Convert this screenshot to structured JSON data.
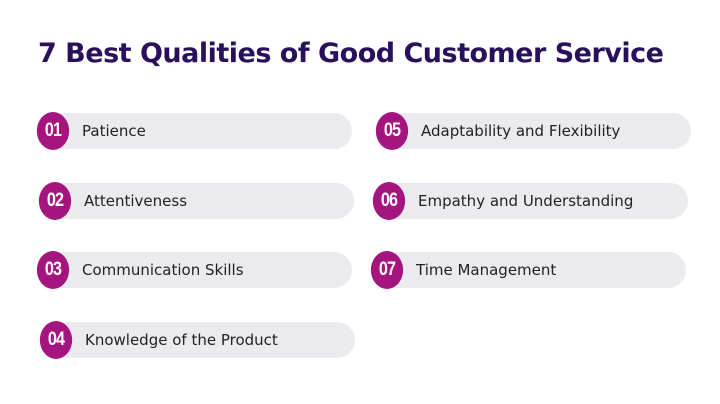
{
  "title": "7 Best Qualities of Good Customer Service",
  "colors": {
    "title": "#2a0f5c",
    "accent": "#a5157f",
    "pill": "#ebebef"
  },
  "items": [
    {
      "number": "01",
      "label": "Patience"
    },
    {
      "number": "02",
      "label": "Attentiveness"
    },
    {
      "number": "03",
      "label": "Communication Skills"
    },
    {
      "number": "04",
      "label": "Knowledge of the Product"
    },
    {
      "number": "05",
      "label": "Adaptability and Flexibility"
    },
    {
      "number": "06",
      "label": "Empathy and Understanding"
    },
    {
      "number": "07",
      "label": "Time Management"
    }
  ]
}
